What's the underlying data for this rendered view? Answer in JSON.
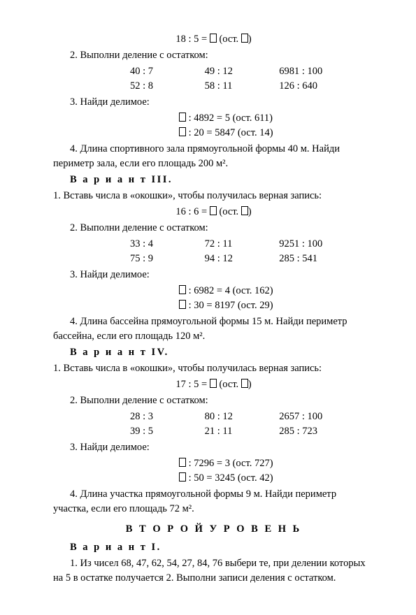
{
  "top_eq": "18 : 5 = □ (ост. □)",
  "ex2_label": "2. Выполни деление с остатком:",
  "ex2_r1": [
    "40 : 7",
    "49 : 12",
    "6981 : 100"
  ],
  "ex2_r2": [
    "52 : 8",
    "58 : 11",
    "126 : 640"
  ],
  "ex3_label": "3. Найди делимое:",
  "ex3_lines": [
    "□ : 4892 = 5 (ост. 611)",
    "□ : 20 = 5847 (ост. 14)"
  ],
  "ex4": "4. Длина спортивного зала прямоугольной формы 40 м. Найди периметр зала, если его площадь 200 м².",
  "v3_title": "В а р и а н т   III.",
  "v3_ex1": "1. Вставь числа в «окошки», чтобы получилась верная запись:",
  "v3_eq": "16 : 6 = □ (ост. □)",
  "v3_ex2_label": "2. Выполни деление с остатком:",
  "v3_ex2_r1": [
    "33 : 4",
    "72 : 11",
    "9251 : 100"
  ],
  "v3_ex2_r2": [
    "75 : 9",
    "94 : 12",
    "285 : 541"
  ],
  "v3_ex3_label": "3. Найди делимое:",
  "v3_ex3_lines": [
    "□ : 6982 = 4 (ост. 162)",
    "□ : 30 = 8197 (ост. 29)"
  ],
  "v3_ex4": "4. Длина бассейна прямоугольной формы 15 м. Найди периметр бассейна, если его площадь 120 м².",
  "v4_title": "В а р и а н т   IV.",
  "v4_ex1": "1. Вставь числа в «окошки», чтобы получилась верная запись:",
  "v4_eq": "17 : 5 = □ (ост. □)",
  "v4_ex2_label": "2. Выполни деление с остатком:",
  "v4_ex2_r1": [
    "28 : 3",
    "80 : 12",
    "2657 : 100"
  ],
  "v4_ex2_r2": [
    "39 : 5",
    "21 : 11",
    "285 : 723"
  ],
  "v4_ex3_label": "3. Найди делимое:",
  "v4_ex3_lines": [
    "□ : 7296 = 3 (ост. 727)",
    "□ : 50 = 3245 (ост. 42)"
  ],
  "v4_ex4": "4. Длина участка прямоугольной формы 9 м. Найди периметр участка, если его площадь 72 м².",
  "level2": "В Т О Р О Й   У Р О В Е Н Ь",
  "v1_title": "В а р и а н т   I.",
  "v1_ex1": "1. Из чисел 68, 47, 62, 54, 27, 84, 76 выбери те, при делении которых на 5 в остатке получается 2. Выполни записи деления с остатком."
}
